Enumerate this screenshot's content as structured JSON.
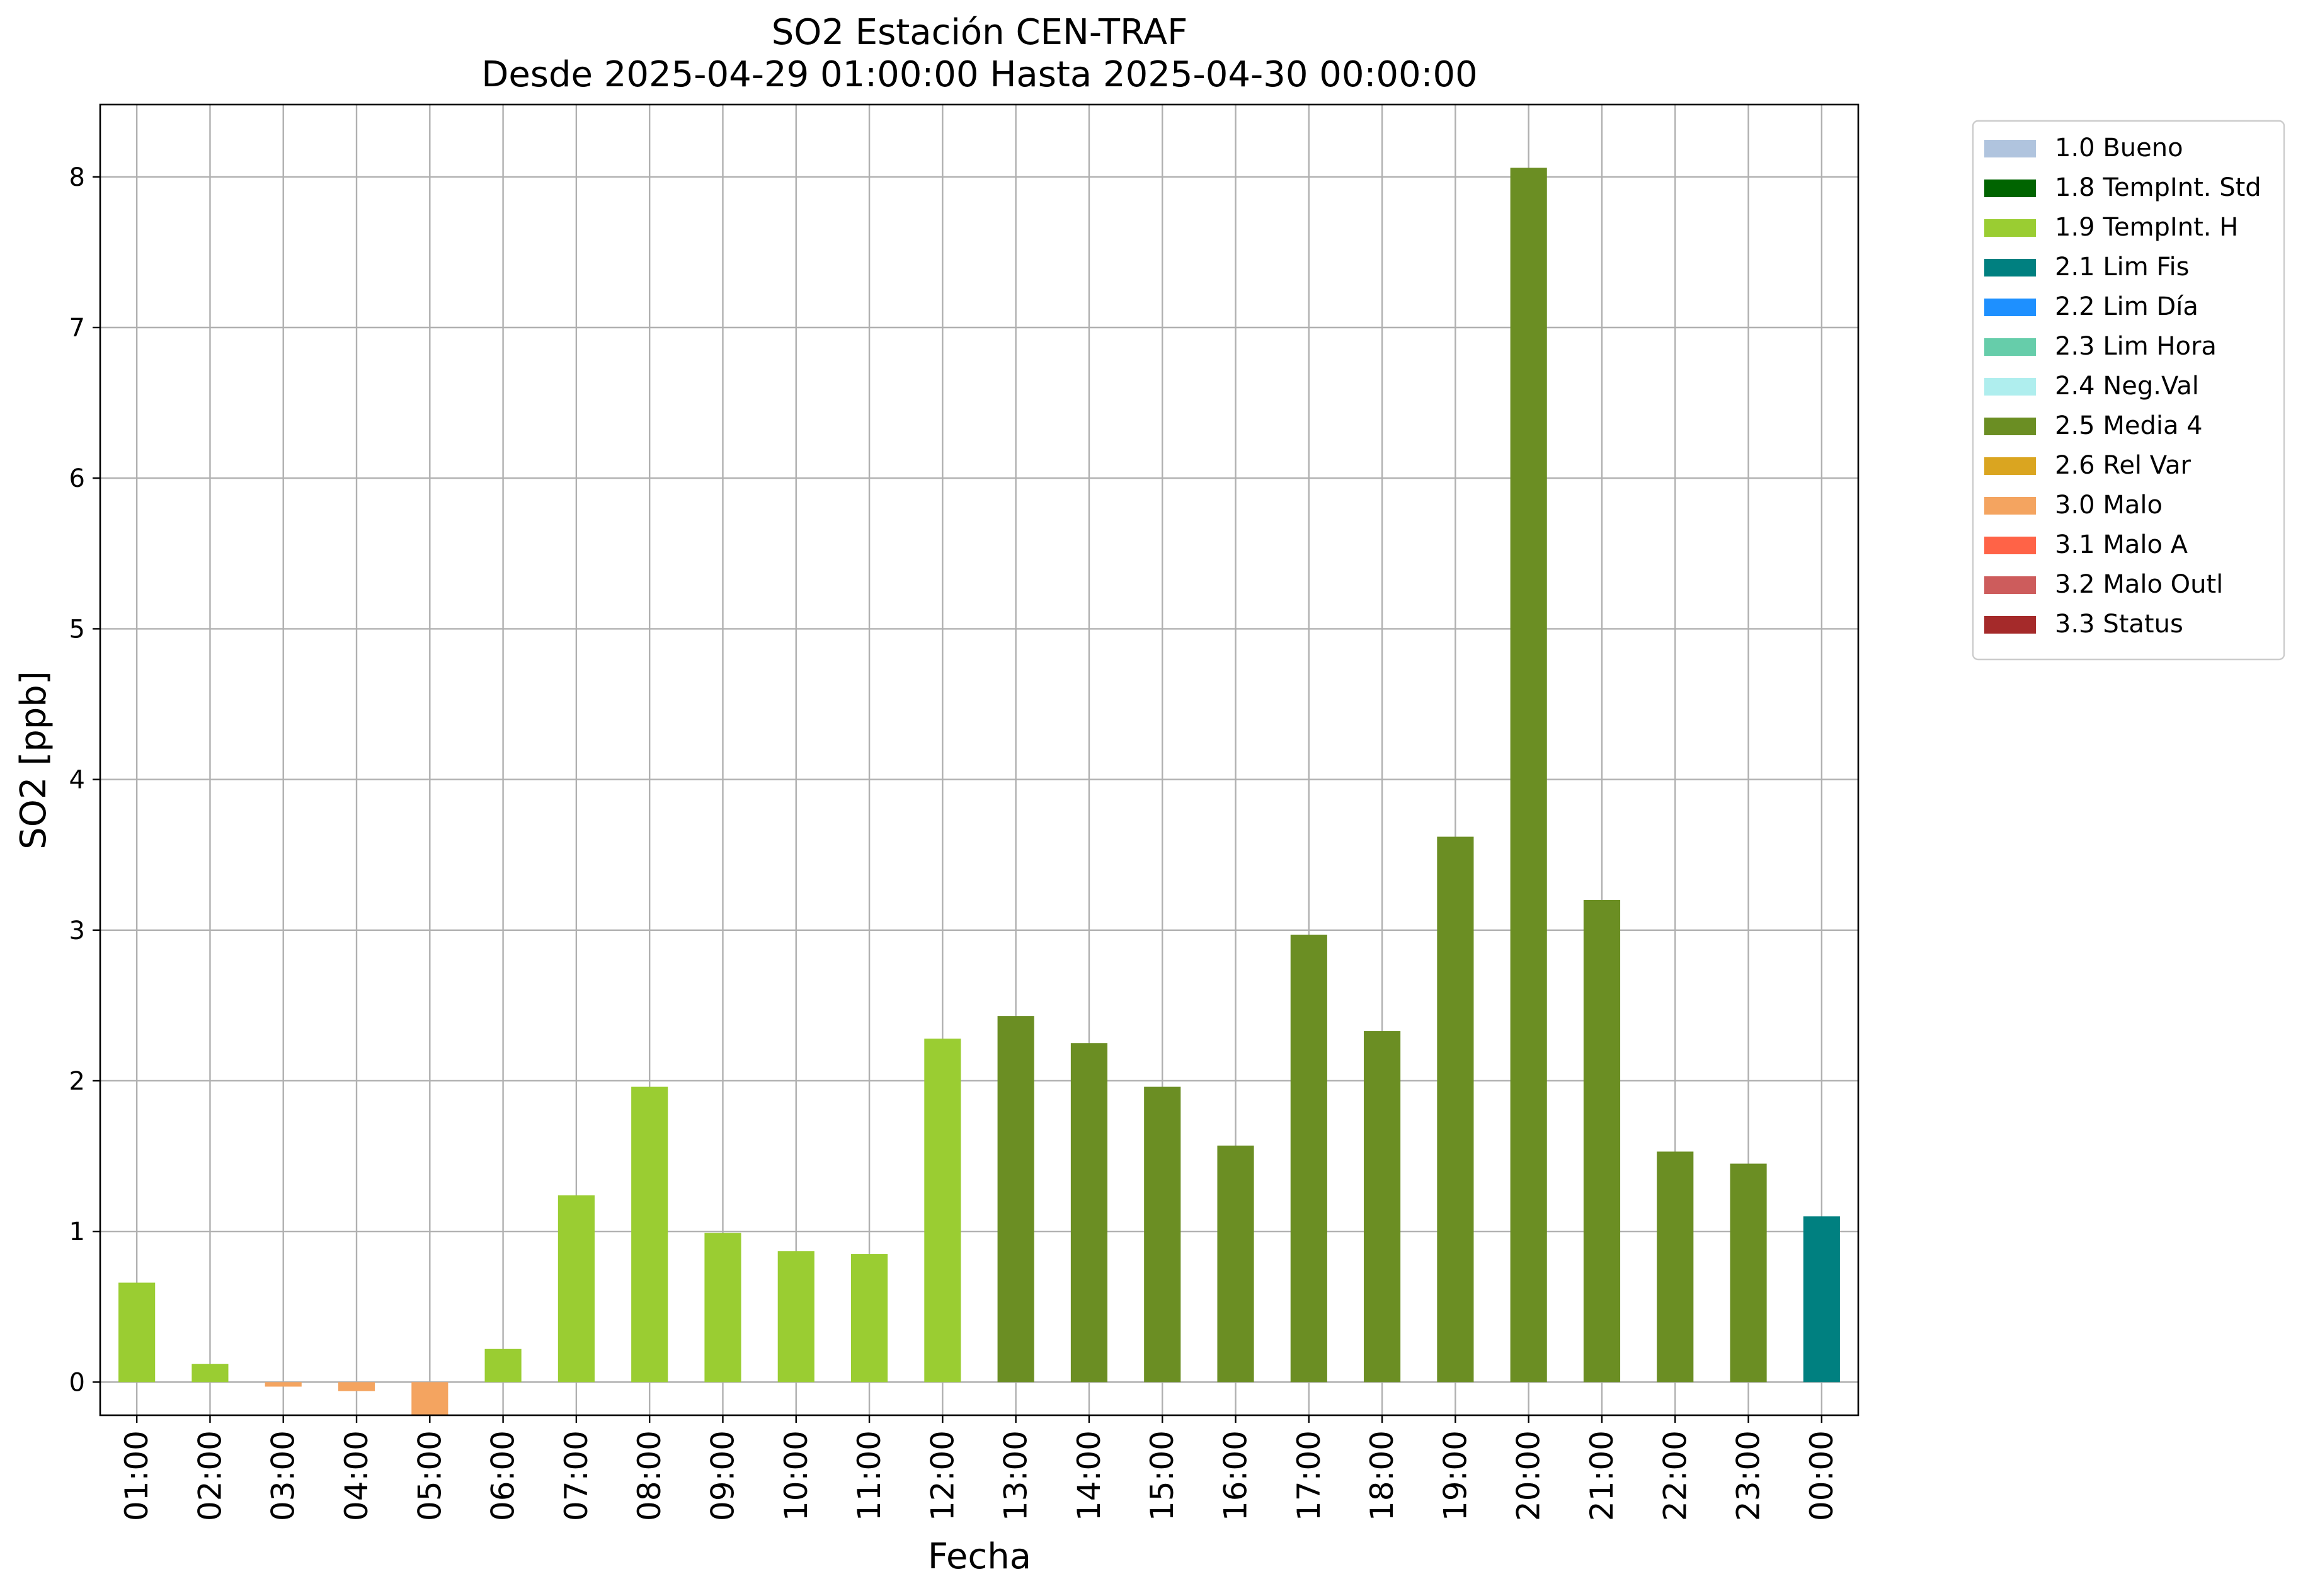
{
  "chart_data": {
    "type": "bar",
    "title_line1": "SO2 Estación CEN-TRAF",
    "title_line2": "Desde 2025-04-29 01:00:00 Hasta 2025-04-30 00:00:00",
    "xlabel": "Fecha",
    "ylabel": "SO2 [ppb]",
    "ylim": [
      -0.22,
      8.48
    ],
    "yticks": [
      0,
      1,
      2,
      3,
      4,
      5,
      6,
      7,
      8
    ],
    "grid": true,
    "legend_position": "outside-top-right",
    "categories": [
      "01:00",
      "02:00",
      "03:00",
      "04:00",
      "05:00",
      "06:00",
      "07:00",
      "08:00",
      "09:00",
      "10:00",
      "11:00",
      "12:00",
      "13:00",
      "14:00",
      "15:00",
      "16:00",
      "17:00",
      "18:00",
      "19:00",
      "20:00",
      "21:00",
      "22:00",
      "23:00",
      "00:00"
    ],
    "values": [
      0.66,
      0.12,
      -0.03,
      -0.06,
      -0.22,
      0.22,
      1.24,
      1.96,
      0.99,
      0.87,
      0.85,
      2.28,
      2.43,
      2.25,
      1.96,
      1.57,
      2.97,
      2.33,
      3.62,
      8.06,
      3.2,
      1.53,
      1.45,
      1.1
    ],
    "flags": [
      "1.9 TempInt. H",
      "1.9 TempInt. H",
      "3.0 Malo",
      "3.0 Malo",
      "3.0 Malo",
      "1.9 TempInt. H",
      "1.9 TempInt. H",
      "1.9 TempInt. H",
      "1.9 TempInt. H",
      "1.9 TempInt. H",
      "1.9 TempInt. H",
      "1.9 TempInt. H",
      "2.5 Media 4",
      "2.5 Media 4",
      "2.5 Media 4",
      "2.5 Media 4",
      "2.5 Media 4",
      "2.5 Media 4",
      "2.5 Media 4",
      "2.5 Media 4",
      "2.5 Media 4",
      "2.5 Media 4",
      "2.5 Media 4",
      "2.1 Lim Fis"
    ],
    "legend": [
      {
        "label": "1.0 Bueno",
        "color": "#b0c4de"
      },
      {
        "label": "1.8 TempInt. Std",
        "color": "#006400"
      },
      {
        "label": "1.9 TempInt. H",
        "color": "#9acd32"
      },
      {
        "label": "2.1 Lim Fis",
        "color": "#008080"
      },
      {
        "label": "2.2 Lim Día",
        "color": "#1e90ff"
      },
      {
        "label": "2.3 Lim Hora",
        "color": "#66cdaa"
      },
      {
        "label": "2.4 Neg.Val",
        "color": "#afeeee"
      },
      {
        "label": "2.5 Media 4",
        "color": "#6b8e23"
      },
      {
        "label": "2.6 Rel Var",
        "color": "#daa520"
      },
      {
        "label": "3.0 Malo",
        "color": "#f4a460"
      },
      {
        "label": "3.1 Malo A",
        "color": "#ff6347"
      },
      {
        "label": "3.2 Malo Outl",
        "color": "#cd5c5c"
      },
      {
        "label": "3.3 Status",
        "color": "#a52a2a"
      }
    ]
  }
}
